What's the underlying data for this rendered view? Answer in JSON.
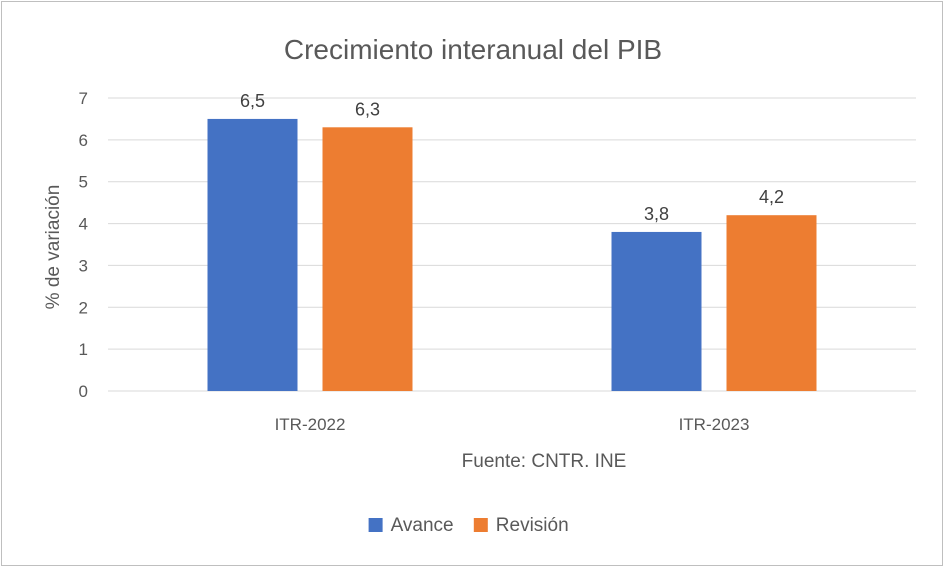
{
  "chart_data": {
    "type": "bar",
    "title": "Crecimiento interanual del PIB",
    "ylabel": "% de variación",
    "xlabel": "",
    "source": "Fuente: CNTR. INE",
    "categories": [
      "ITR-2022",
      "ITR-2023"
    ],
    "series": [
      {
        "name": "Avance",
        "color": "#4472c4",
        "values": [
          6.5,
          3.8
        ],
        "labels": [
          "6,5",
          "3,8"
        ]
      },
      {
        "name": "Revisión",
        "color": "#ed7d31",
        "values": [
          6.3,
          4.2
        ],
        "labels": [
          "6,3",
          "4,2"
        ]
      }
    ],
    "ylim": [
      0,
      7
    ],
    "yticks": [
      "0",
      "1",
      "2",
      "3",
      "4",
      "5",
      "6",
      "7"
    ],
    "grid": true,
    "legend_position": "bottom"
  }
}
